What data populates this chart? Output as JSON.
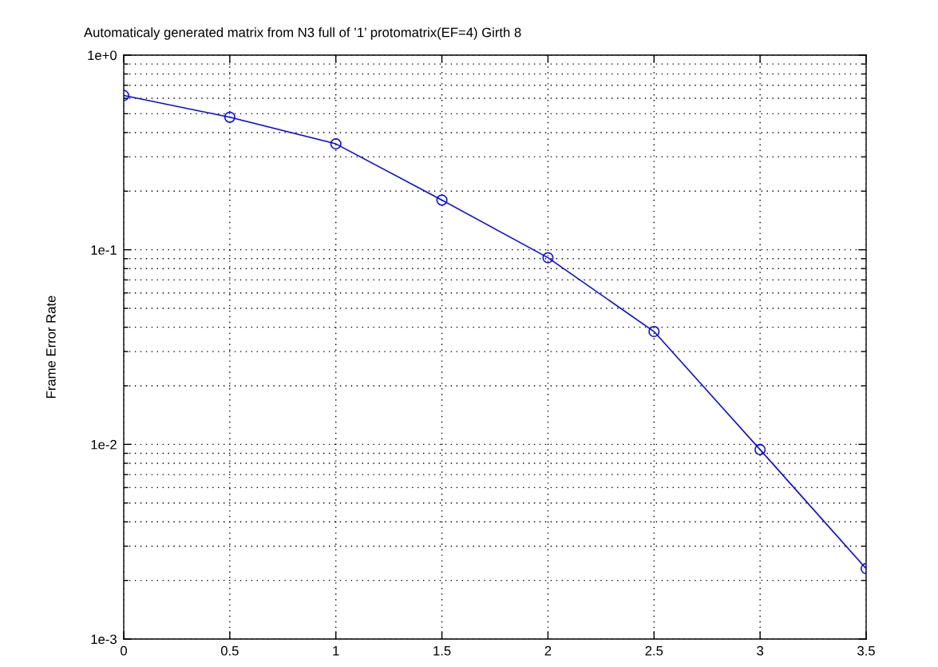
{
  "chart_data": {
    "type": "line",
    "title": "Automaticaly generated matrix from N3 full of ’1’ protomatrix(EF=4) Girth 8",
    "ylabel": "Frame Error Rate",
    "x": [
      0,
      0.5,
      1,
      1.5,
      2,
      2.5,
      3,
      3.5
    ],
    "series": [
      {
        "color": "#0000ff",
        "values": [
          0.62,
          0.48,
          0.35,
          0.18,
          0.091,
          0.038,
          0.0094,
          0.0023
        ]
      }
    ],
    "xlim": [
      0,
      3.5
    ],
    "xticks": [
      0,
      0.5,
      1,
      1.5,
      2,
      2.5,
      3,
      3.5
    ],
    "ylim": [
      0.001,
      1
    ],
    "yticks": [
      {
        "value": 0.001,
        "label": "1e-3"
      },
      {
        "value": 0.01,
        "label": "1e-2"
      },
      {
        "value": 0.1,
        "label": "1e-1"
      },
      {
        "value": 1,
        "label": "1e+0"
      }
    ],
    "log": "y",
    "grid": true,
    "marker": "circle",
    "line_style": "solid"
  }
}
